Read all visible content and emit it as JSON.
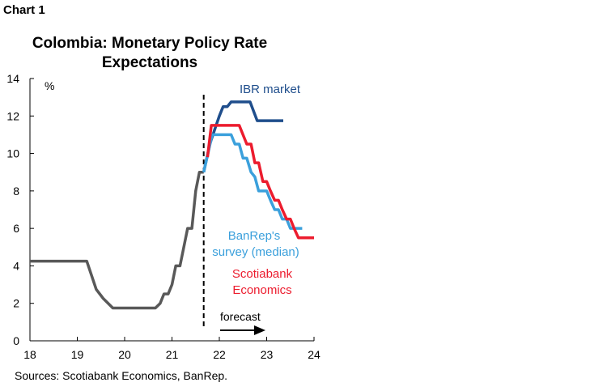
{
  "caption": "Chart 1",
  "source": "Sources: Scotiabank Economics, BanRep.",
  "chart_data": {
    "type": "line",
    "title": "Colombia: Monetary Policy Rate Expectations",
    "ylabel": "%",
    "xlim": [
      18,
      24
    ],
    "ylim": [
      0,
      14
    ],
    "xticks": [
      "18",
      "19",
      "20",
      "21",
      "22",
      "23",
      "24"
    ],
    "yticks": [
      "0",
      "2",
      "4",
      "6",
      "8",
      "10",
      "12",
      "14"
    ],
    "grid": false,
    "forecast_line_x": 21.67,
    "forecast_label": "forecast",
    "series": [
      {
        "name": "",
        "color": "#595959",
        "x": [
          18,
          19.2,
          19.4,
          19.55,
          19.75,
          20.65,
          20.75,
          20.83,
          20.92,
          21.0,
          21.08,
          21.17,
          21.25,
          21.33,
          21.42,
          21.5,
          21.58,
          21.67
        ],
        "y": [
          4.25,
          4.25,
          2.75,
          2.25,
          1.75,
          1.75,
          2.0,
          2.5,
          2.5,
          3.0,
          4.0,
          4.0,
          5.0,
          6.0,
          6.0,
          8.0,
          9.0,
          9.0
        ]
      },
      {
        "name": "IBR market",
        "color": "#1F4E8C",
        "x": [
          21.67,
          21.8,
          21.9,
          22.0,
          22.08,
          22.17,
          22.25,
          22.65,
          22.8,
          23.35
        ],
        "y": [
          9.0,
          10.5,
          11.25,
          12.0,
          12.5,
          12.5,
          12.75,
          12.75,
          11.75,
          11.75
        ]
      },
      {
        "name": "BanRep's survey (median)",
        "color": "#3BA0DC",
        "x": [
          21.67,
          21.85,
          22.25,
          22.33,
          22.42,
          22.5,
          22.58,
          22.67,
          22.75,
          22.83,
          22.92,
          23.0,
          23.08,
          23.17,
          23.25,
          23.33,
          23.42,
          23.5,
          23.58,
          23.75
        ],
        "y": [
          9.0,
          11.0,
          11.0,
          10.5,
          10.5,
          9.75,
          9.75,
          9.0,
          8.75,
          8.0,
          8.0,
          8.0,
          7.5,
          7.0,
          7.0,
          6.5,
          6.5,
          6.0,
          6.0,
          6.0
        ]
      },
      {
        "name": "Scotiabank Economics",
        "color": "#EC1C2E",
        "x": [
          21.75,
          21.83,
          22.42,
          22.58,
          22.67,
          22.75,
          22.83,
          22.92,
          23.0,
          23.08,
          23.17,
          23.25,
          23.33,
          23.42,
          23.5,
          23.58,
          23.67,
          23.8,
          24.0
        ],
        "y": [
          9.8,
          11.5,
          11.5,
          10.5,
          10.5,
          9.5,
          9.5,
          8.5,
          8.5,
          8.0,
          7.5,
          7.5,
          7.0,
          6.5,
          6.5,
          6.0,
          5.5,
          5.5,
          5.5
        ]
      }
    ]
  }
}
